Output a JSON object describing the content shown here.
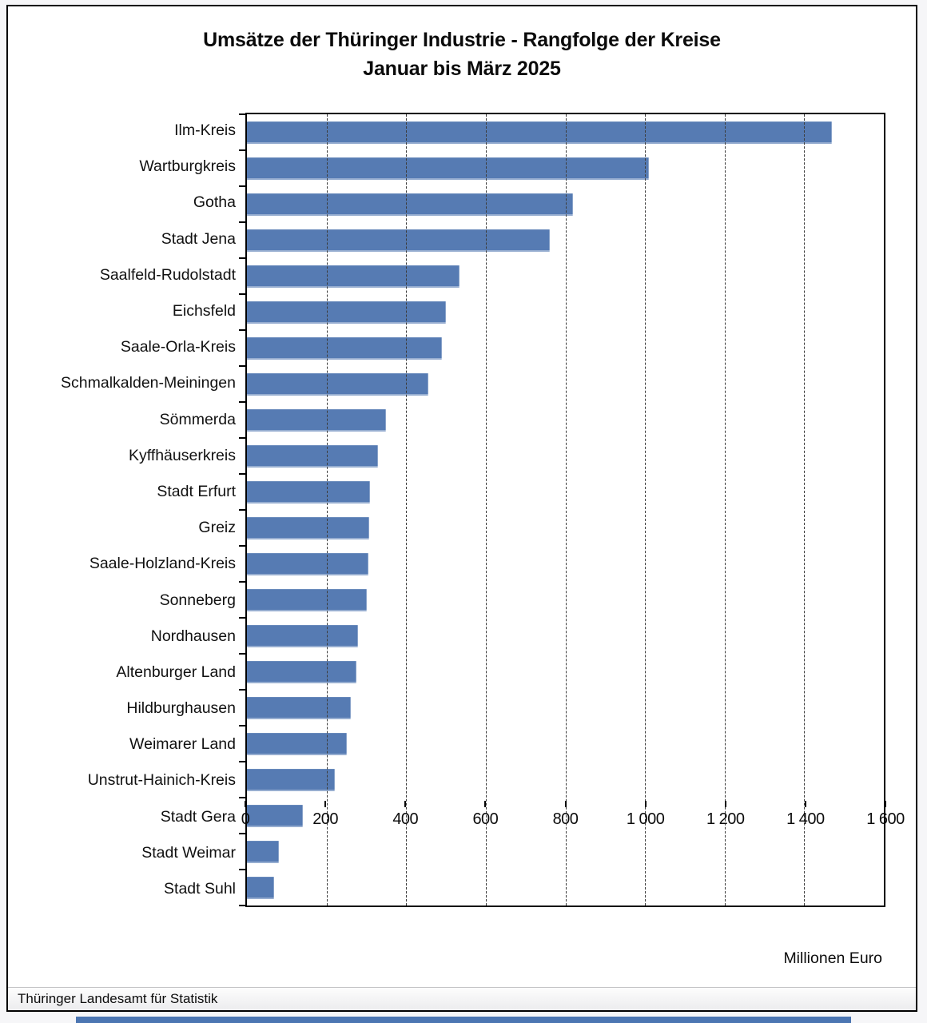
{
  "title": {
    "line1": "Umsätze der Thüringer Industrie - Rangfolge der Kreise",
    "line2": "Januar bis März 2025"
  },
  "axis": {
    "unit_label": "Millionen Euro",
    "tick_labels": [
      "0",
      "200",
      "400",
      "600",
      "800",
      "1 000",
      "1 200",
      "1 400",
      "1 600"
    ]
  },
  "footer": {
    "source": "Thüringer Landesamt für Statistik"
  },
  "colors": {
    "bar": "#567bb3",
    "grid": "#3c3c3c",
    "frame_border": "#000000",
    "bottom_bar": "#4c76b2"
  },
  "chart_data": {
    "type": "bar",
    "orientation": "horizontal",
    "title": "Umsätze der Thüringer Industrie - Rangfolge der Kreise, Januar bis März 2025",
    "xlabel": "Millionen Euro",
    "xlim": [
      0,
      1600
    ],
    "x_ticks": [
      0,
      200,
      400,
      600,
      800,
      1000,
      1200,
      1400,
      1600
    ],
    "grid": "vertical dashed gridlines every 200",
    "legend": "none",
    "categories": [
      "Ilm-Kreis",
      "Wartburgkreis",
      "Gotha",
      "Stadt Jena",
      "Saalfeld-Rudolstadt",
      "Eichsfeld",
      "Saale-Orla-Kreis",
      "Schmalkalden-Meiningen",
      "Sömmerda",
      "Kyffhäuserkreis",
      "Stadt Erfurt",
      "Greiz",
      "Saale-Holzland-Kreis",
      "Sonneberg",
      "Nordhausen",
      "Altenburger Land",
      "Hildburghausen",
      "Weimarer Land",
      "Unstrut-Hainich-Kreis",
      "Stadt Gera",
      "Stadt Weimar",
      "Stadt Suhl"
    ],
    "values": [
      1470,
      1010,
      820,
      760,
      535,
      500,
      490,
      455,
      350,
      330,
      310,
      308,
      305,
      302,
      280,
      275,
      260,
      250,
      220,
      140,
      80,
      68
    ],
    "source": "Thüringer Landesamt für Statistik"
  }
}
